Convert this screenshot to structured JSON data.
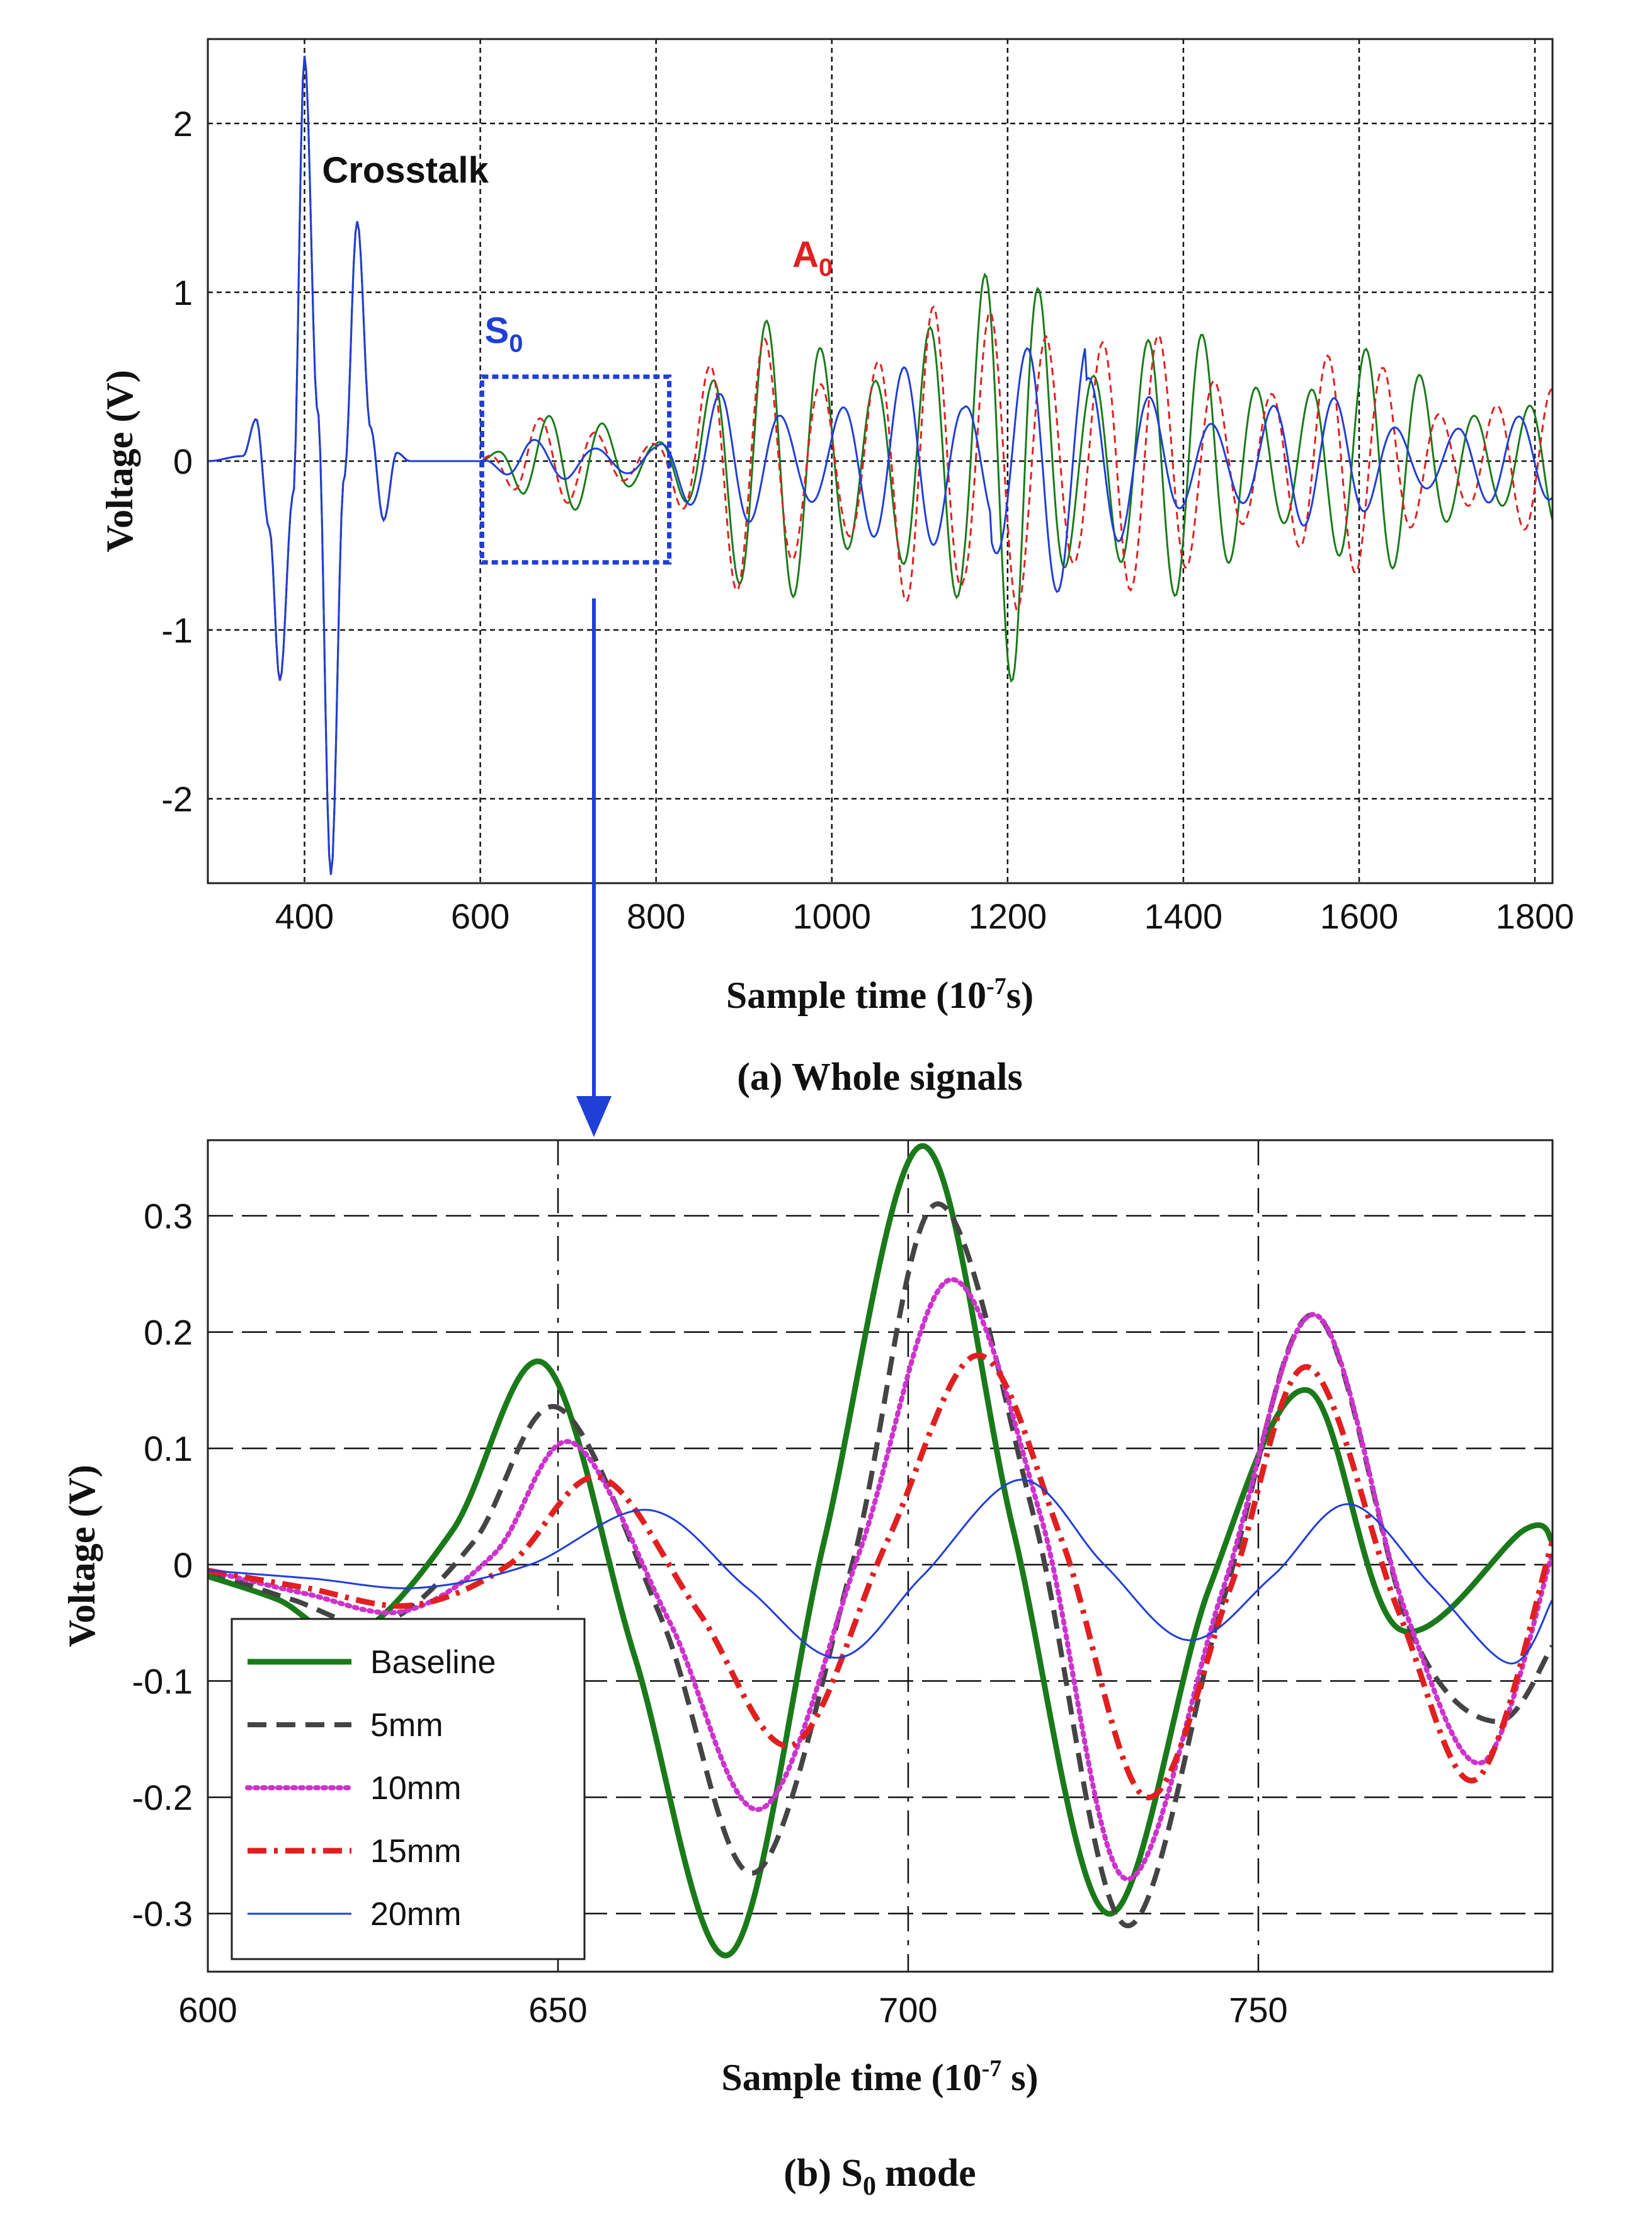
{
  "chart_data": [
    {
      "id": "a",
      "type": "line",
      "caption": "(a) Whole signals",
      "xlabel": "Sample time (10",
      "xlabel_exp": "-7",
      "xlabel_end": "s)",
      "ylabel": "Voltage (V)",
      "xlim": [
        290,
        1820
      ],
      "ylim": [
        -2.5,
        2.5
      ],
      "xticks": [
        400,
        600,
        800,
        1000,
        1200,
        1400,
        1600,
        1800
      ],
      "yticks": [
        -2,
        -1,
        0,
        1,
        2
      ],
      "grid": true,
      "annotations": [
        {
          "text": "Crosstalk",
          "x": 420,
          "y": 1.65,
          "color": "#111111"
        },
        {
          "text": "A",
          "sub": "0",
          "x": 955,
          "y": 1.15,
          "color": "#e02020"
        },
        {
          "text": "S",
          "sub": "0",
          "x": 605,
          "y": 0.7,
          "color": "#1f3fd6"
        }
      ],
      "zoom_box": {
        "x": [
          602,
          815
        ],
        "y": [
          -0.6,
          0.5
        ],
        "color": "#1f3fd6"
      },
      "series": [
        {
          "name": "Baseline",
          "color": "#1a7a1a",
          "style": "solid"
        },
        {
          "name": "15mm",
          "color": "#e02020",
          "style": "dashed"
        },
        {
          "name": "20mm",
          "color": "#1f3fd6",
          "style": "solid"
        }
      ],
      "crosstalk_peaks": {
        "x": [
          290,
          330,
          345,
          360,
          372,
          387,
          400,
          415,
          430,
          445,
          460,
          475,
          490,
          505,
          520,
          600
        ],
        "y": [
          0,
          0.03,
          0.25,
          -0.4,
          -1.3,
          -0.2,
          2.4,
          0.3,
          -2.45,
          -0.1,
          1.42,
          0.2,
          -0.35,
          0.05,
          0.0,
          0.0
        ]
      }
    },
    {
      "id": "b",
      "type": "line",
      "caption": "(b) S",
      "caption_sub": "0",
      "caption_end": "mode",
      "xlabel": "Sample time (10",
      "xlabel_exp": "-7",
      "xlabel_end": " s)",
      "ylabel": "Voltage (V)",
      "xlim": [
        600,
        792
      ],
      "ylim": [
        -0.35,
        0.365
      ],
      "xticks": [
        600,
        650,
        700,
        750
      ],
      "yticks": [
        -0.3,
        -0.2,
        -0.1,
        0,
        0.1,
        0.2,
        0.3
      ],
      "ytick_labels": [
        "-0.3",
        "-0.2",
        "-0.1",
        "0",
        "0.1",
        "0.2",
        "0.3"
      ],
      "grid": true,
      "series": [
        {
          "name": "Baseline",
          "color": "#1a7a1a",
          "style": "solid",
          "x": [
            600,
            610,
            621,
            635,
            648,
            661,
            674.5,
            688,
            702,
            715,
            728.5,
            743,
            757,
            770,
            788,
            792
          ],
          "y": [
            -0.01,
            -0.03,
            -0.06,
            0.03,
            0.173,
            -0.08,
            -0.335,
            0.02,
            0.36,
            0.03,
            -0.3,
            -0.02,
            0.15,
            -0.055,
            0.03,
            0.02
          ]
        },
        {
          "name": "5mm",
          "color": "#444444",
          "style": "dash",
          "x": [
            600,
            612,
            625,
            638,
            650,
            665,
            678,
            692,
            704,
            718,
            731,
            745,
            758,
            772,
            784,
            792
          ],
          "y": [
            -0.005,
            -0.03,
            -0.05,
            0.02,
            0.135,
            -0.05,
            -0.265,
            0.0,
            0.31,
            0.04,
            -0.31,
            -0.03,
            0.215,
            -0.06,
            -0.135,
            -0.07
          ]
        },
        {
          "name": "10mm",
          "color": "#cc33cc",
          "style": "dot",
          "x": [
            600,
            614,
            628,
            641,
            652,
            666,
            679,
            693,
            706,
            719,
            731,
            745,
            758,
            771,
            782,
            792
          ],
          "y": [
            -0.005,
            -0.025,
            -0.04,
            0.01,
            0.105,
            -0.05,
            -0.21,
            0.01,
            0.245,
            0.04,
            -0.27,
            -0.02,
            0.215,
            -0.04,
            -0.17,
            0.01
          ]
        },
        {
          "name": "15mm",
          "color": "#e02020",
          "style": "dashdot",
          "x": [
            600,
            614,
            629,
            643,
            656,
            670,
            683.5,
            697,
            710,
            722,
            734,
            746,
            757,
            770,
            781,
            792
          ],
          "y": [
            -0.005,
            -0.02,
            -0.035,
            0.0,
            0.075,
            -0.04,
            -0.155,
            0.02,
            0.18,
            0.02,
            -0.2,
            -0.02,
            0.17,
            -0.04,
            -0.185,
            0.02
          ]
        },
        {
          "name": "20mm",
          "color": "#1f3fd6",
          "style": "thin",
          "x": [
            600,
            615,
            630,
            646,
            663,
            677,
            690,
            702,
            716,
            728,
            740,
            752,
            763,
            775,
            786,
            792
          ],
          "y": [
            -0.005,
            -0.012,
            -0.02,
            0.0,
            0.047,
            -0.02,
            -0.08,
            -0.01,
            0.073,
            0.0,
            -0.065,
            -0.01,
            0.052,
            -0.02,
            -0.085,
            -0.03
          ]
        }
      ]
    }
  ]
}
